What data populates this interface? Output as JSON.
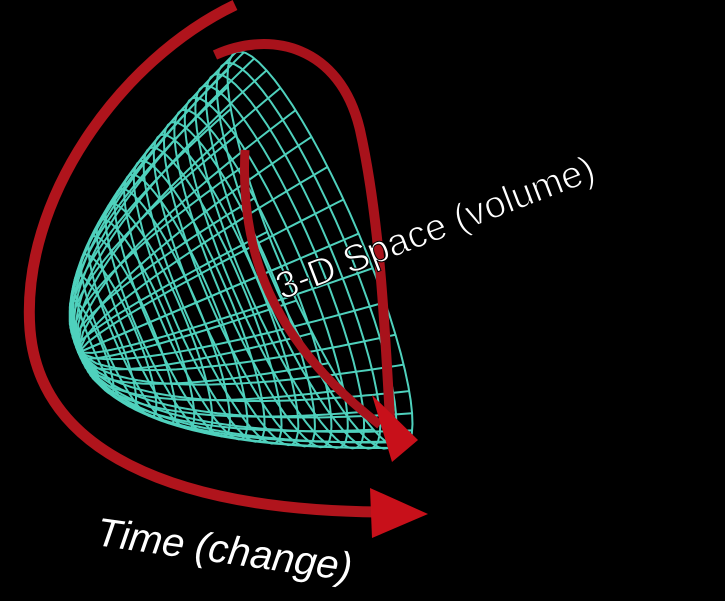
{
  "labels": {
    "space": "3-D Space (volume)",
    "time": "Time (change)"
  }
}
